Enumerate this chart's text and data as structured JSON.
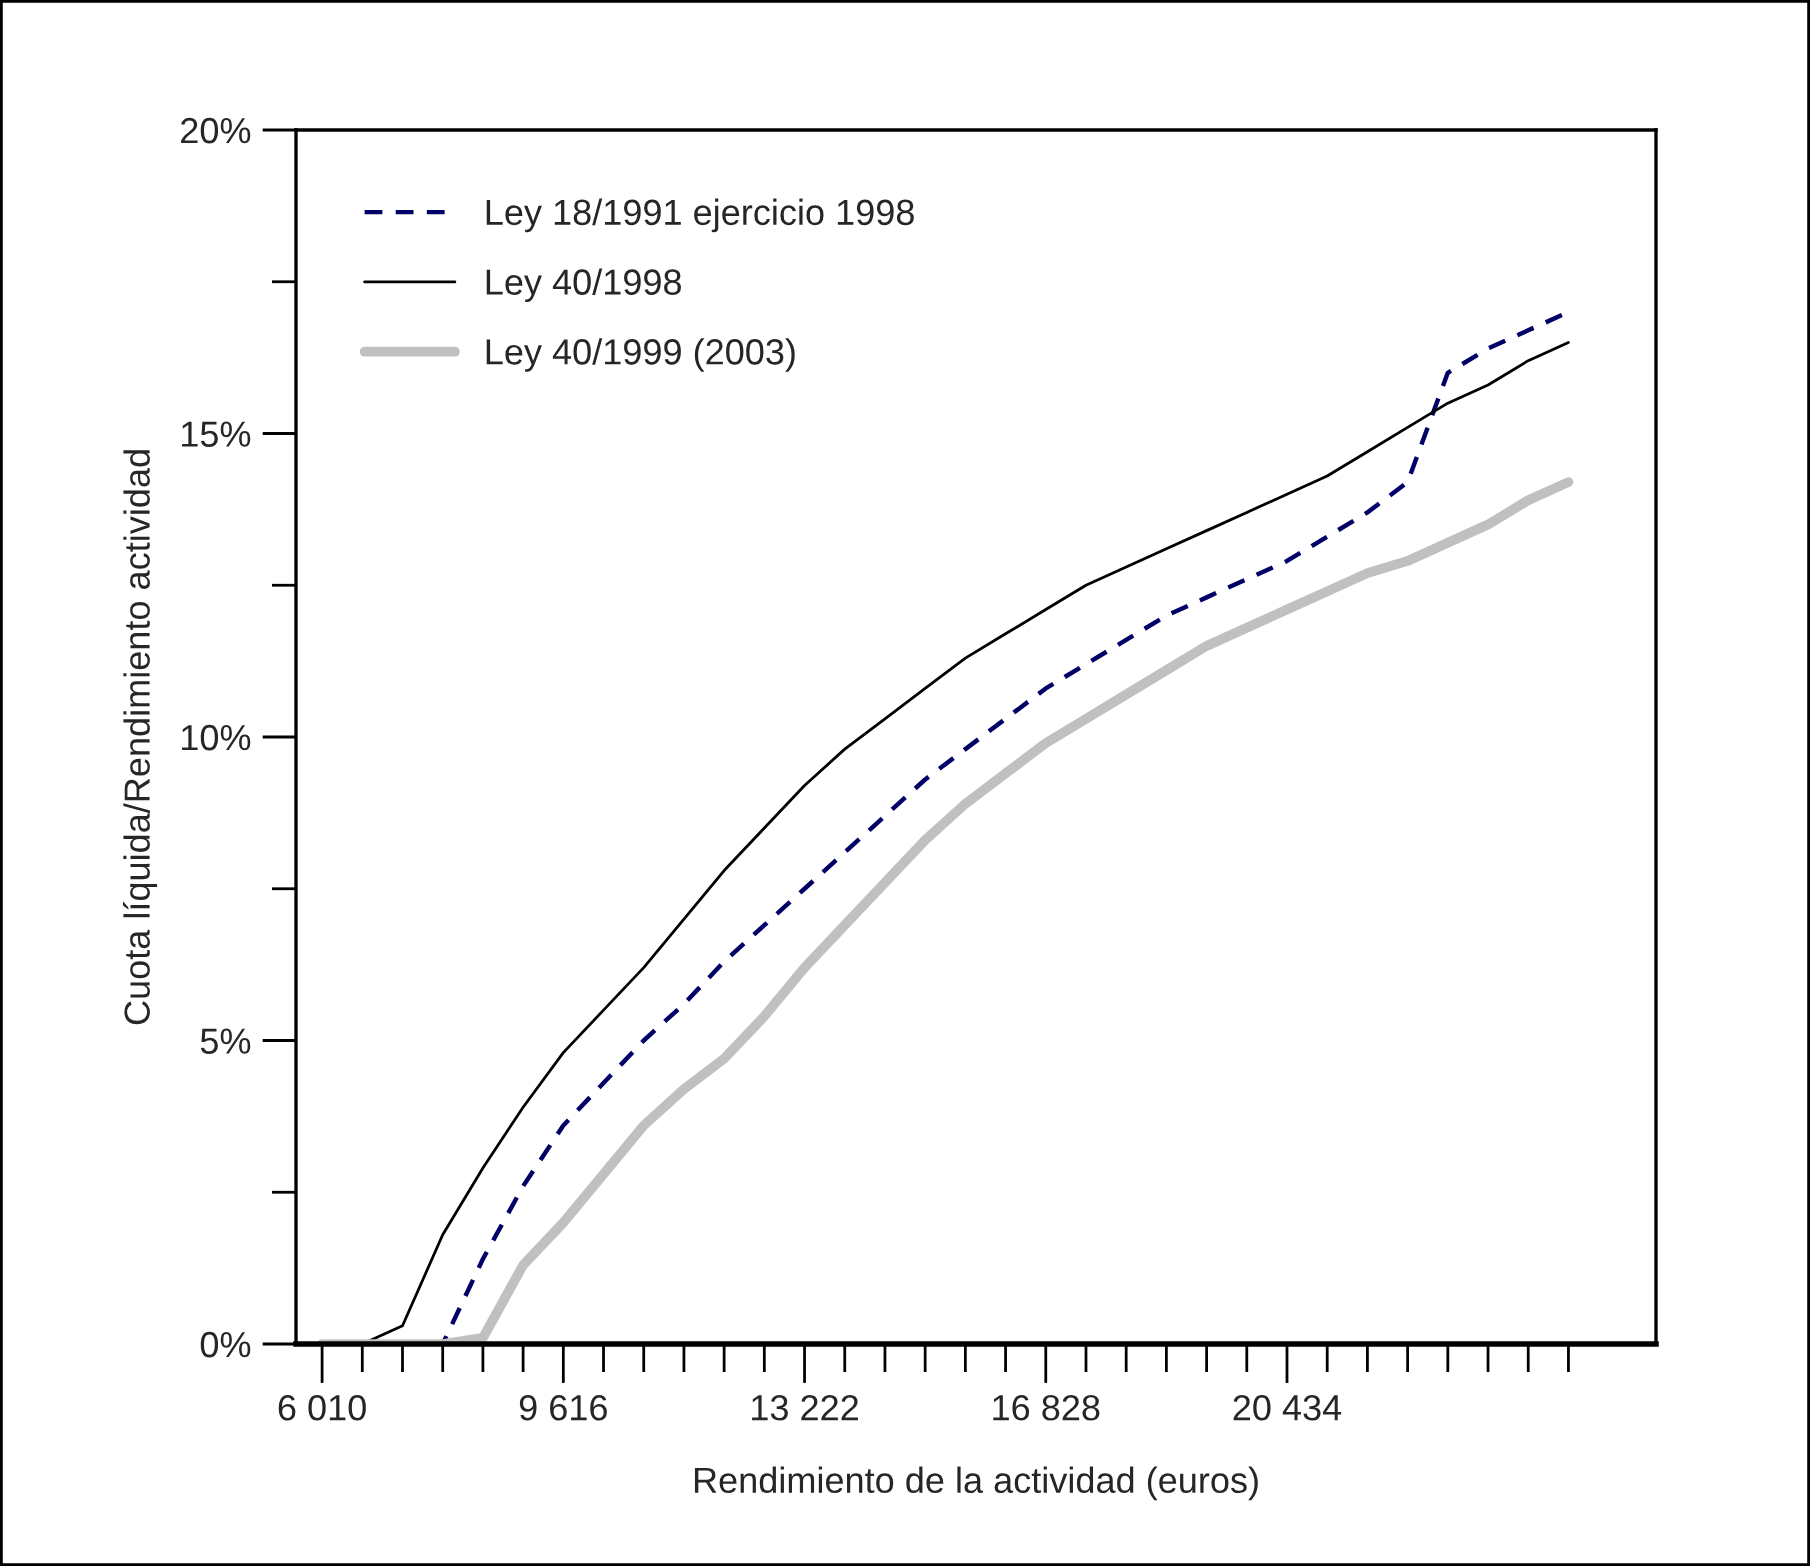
{
  "chart_data": {
    "type": "line",
    "xlabel": "Rendimiento de la actividad (euros)",
    "ylabel": "Cuota líquida/Rendimiento actividad",
    "x": [
      6010,
      6611,
      7212,
      7813,
      8414,
      9015,
      9616,
      10217,
      10818,
      11419,
      12020,
      12621,
      13222,
      13823,
      14424,
      15025,
      15626,
      16227,
      16828,
      17429,
      18030,
      18631,
      19232,
      19833,
      20434,
      21035,
      21636,
      22237,
      22838,
      23439,
      24040,
      24641
    ],
    "series": [
      {
        "name": "Ley 18/1991 ejercicio 1998",
        "color": "#000066",
        "line_style": "dashed",
        "values": [
          null,
          null,
          0,
          0,
          1.4,
          2.6,
          3.6,
          4.3,
          5.0,
          5.6,
          6.3,
          6.9,
          7.5,
          8.1,
          8.7,
          9.3,
          9.8,
          10.3,
          10.8,
          11.2,
          11.6,
          12.0,
          12.3,
          12.6,
          12.9,
          13.3,
          13.7,
          14.2,
          16.0,
          16.4,
          16.7,
          17.0
        ]
      },
      {
        "name": "Ley 40/1998",
        "color": "#000000",
        "line_style": "solid",
        "values": [
          0,
          0,
          0.3,
          1.8,
          2.9,
          3.9,
          4.8,
          5.5,
          6.2,
          7.0,
          7.8,
          8.5,
          9.2,
          9.8,
          10.3,
          10.8,
          11.3,
          11.7,
          12.1,
          12.5,
          12.8,
          13.1,
          13.4,
          13.7,
          14.0,
          14.3,
          14.7,
          15.1,
          15.5,
          15.8,
          16.2,
          16.5
        ]
      },
      {
        "name": "Ley 40/1999 (2003)",
        "color": "#c0c0c0",
        "line_style": "solid",
        "values": [
          0,
          0,
          0,
          0,
          0.1,
          1.3,
          2.0,
          2.8,
          3.6,
          4.2,
          4.7,
          5.4,
          6.2,
          6.9,
          7.6,
          8.3,
          8.9,
          9.4,
          9.9,
          10.3,
          10.7,
          11.1,
          11.5,
          11.8,
          12.1,
          12.4,
          12.7,
          12.9,
          13.2,
          13.5,
          13.9,
          14.2
        ]
      }
    ],
    "xlim": [
      5620,
      25950
    ],
    "xticks": [
      {
        "value": 6010,
        "label": "6 010"
      },
      {
        "value": 6611,
        "label": null
      },
      {
        "value": 7212,
        "label": null
      },
      {
        "value": 7813,
        "label": null
      },
      {
        "value": 8414,
        "label": null
      },
      {
        "value": 9015,
        "label": null
      },
      {
        "value": 9616,
        "label": "9 616"
      },
      {
        "value": 10217,
        "label": null
      },
      {
        "value": 10818,
        "label": null
      },
      {
        "value": 11419,
        "label": null
      },
      {
        "value": 12020,
        "label": null
      },
      {
        "value": 12621,
        "label": null
      },
      {
        "value": 13222,
        "label": "13 222"
      },
      {
        "value": 13823,
        "label": null
      },
      {
        "value": 14424,
        "label": null
      },
      {
        "value": 15025,
        "label": null
      },
      {
        "value": 15626,
        "label": null
      },
      {
        "value": 16227,
        "label": null
      },
      {
        "value": 16828,
        "label": "16 828"
      },
      {
        "value": 17429,
        "label": null
      },
      {
        "value": 18030,
        "label": null
      },
      {
        "value": 18631,
        "label": null
      },
      {
        "value": 19232,
        "label": null
      },
      {
        "value": 19833,
        "label": null
      },
      {
        "value": 20434,
        "label": "20 434"
      },
      {
        "value": 21035,
        "label": null
      },
      {
        "value": 21636,
        "label": null
      },
      {
        "value": 22237,
        "label": null
      },
      {
        "value": 22838,
        "label": null
      },
      {
        "value": 23439,
        "label": null
      },
      {
        "value": 24040,
        "label": null
      },
      {
        "value": 24641,
        "label": null
      }
    ],
    "ylim": [
      0,
      20
    ],
    "yticks": [
      {
        "value": 0,
        "label": "0%"
      },
      {
        "value": 2.5,
        "label": null
      },
      {
        "value": 5,
        "label": "5%"
      },
      {
        "value": 7.5,
        "label": null
      },
      {
        "value": 10,
        "label": "10%"
      },
      {
        "value": 12.5,
        "label": null
      },
      {
        "value": 15,
        "label": "15%"
      },
      {
        "value": 17.5,
        "label": null
      },
      {
        "value": 20,
        "label": "20%"
      }
    ],
    "grid": false,
    "legend": "top left"
  }
}
